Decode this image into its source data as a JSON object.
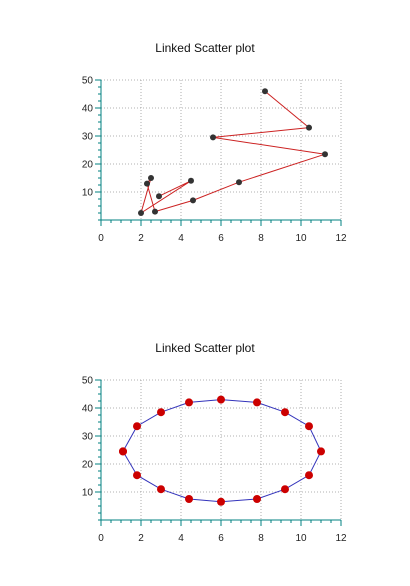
{
  "chart_data": [
    {
      "type": "scatter",
      "title": "Linked Scatter plot",
      "xlabel": "",
      "ylabel": "",
      "xlim": [
        0,
        12
      ],
      "ylim": [
        0,
        50
      ],
      "xticks": [
        0,
        2,
        4,
        6,
        8,
        10,
        12
      ],
      "yticks": [
        10,
        20,
        30,
        40,
        50
      ],
      "grid": true,
      "linked": true,
      "colors": {
        "line": "#cc2222",
        "marker": "#333333",
        "axis": "#008080",
        "grid": "#999999"
      },
      "series": [
        {
          "x": [
            8.2,
            10.4,
            5.6,
            11.2,
            6.9,
            4.6,
            2.7,
            2.3,
            2.5,
            2.0,
            4.5,
            2.9
          ],
          "y": [
            46,
            33,
            29.5,
            23.5,
            13.5,
            7,
            3,
            13,
            15,
            2.5,
            14,
            8.5
          ]
        }
      ]
    },
    {
      "type": "scatter",
      "title": "Linked Scatter plot",
      "xlabel": "",
      "ylabel": "",
      "xlim": [
        0,
        12
      ],
      "ylim": [
        0,
        50
      ],
      "xticks": [
        0,
        2,
        4,
        6,
        8,
        10,
        12
      ],
      "yticks": [
        10,
        20,
        30,
        40,
        50
      ],
      "grid": true,
      "linked": true,
      "colors": {
        "line": "#3333bb",
        "marker": "#cc0000",
        "axis": "#008080",
        "grid": "#999999"
      },
      "series": [
        {
          "x": [
            1.1,
            1.8,
            3.0,
            4.4,
            6.0,
            7.8,
            9.2,
            10.4,
            11.0,
            10.4,
            9.2,
            7.8,
            6.0,
            4.4,
            3.0,
            1.8,
            1.1
          ],
          "y": [
            24.5,
            33.5,
            38.5,
            42,
            43,
            42,
            38.5,
            33.5,
            24.5,
            16,
            11,
            7.5,
            6.5,
            7.5,
            11,
            16,
            24.5
          ]
        }
      ]
    }
  ]
}
